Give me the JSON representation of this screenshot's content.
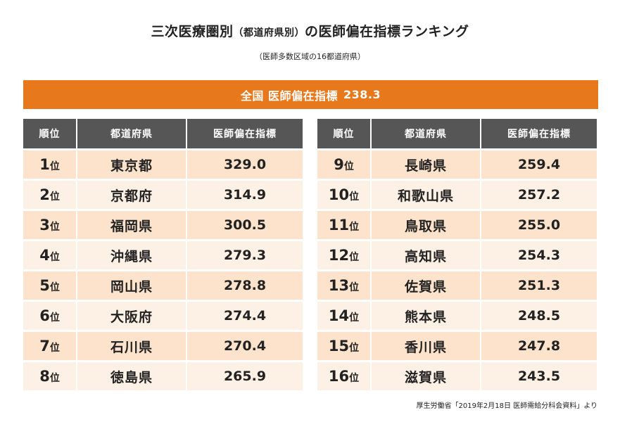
{
  "title": {
    "main_prefix": "三次医療圏別",
    "main_small": "（都道府県別）",
    "main_suffix": "の医師偏在指標ランキング",
    "subtitle": "（医師多数区域の16都道府県）"
  },
  "banner": {
    "label": "全国 医師偏在指標",
    "value": "238.3"
  },
  "table": {
    "headers": [
      "順位",
      "都道府県",
      "医師偏在指標"
    ],
    "rank_suffix": "位",
    "left": [
      {
        "rank": "1",
        "prefecture": "東京都",
        "value": "329.0"
      },
      {
        "rank": "2",
        "prefecture": "京都府",
        "value": "314.9"
      },
      {
        "rank": "3",
        "prefecture": "福岡県",
        "value": "300.5"
      },
      {
        "rank": "4",
        "prefecture": "沖縄県",
        "value": "279.3"
      },
      {
        "rank": "5",
        "prefecture": "岡山県",
        "value": "278.8"
      },
      {
        "rank": "6",
        "prefecture": "大阪府",
        "value": "274.4"
      },
      {
        "rank": "7",
        "prefecture": "石川県",
        "value": "270.4"
      },
      {
        "rank": "8",
        "prefecture": "徳島県",
        "value": "265.9"
      }
    ],
    "right": [
      {
        "rank": "9",
        "prefecture": "長崎県",
        "value": "259.4"
      },
      {
        "rank": "10",
        "prefecture": "和歌山県",
        "value": "257.2"
      },
      {
        "rank": "11",
        "prefecture": "鳥取県",
        "value": "255.0"
      },
      {
        "rank": "12",
        "prefecture": "高知県",
        "value": "254.3"
      },
      {
        "rank": "13",
        "prefecture": "佐賀県",
        "value": "251.3"
      },
      {
        "rank": "14",
        "prefecture": "熊本県",
        "value": "248.5"
      },
      {
        "rank": "15",
        "prefecture": "香川県",
        "value": "247.8"
      },
      {
        "rank": "16",
        "prefecture": "滋賀県",
        "value": "243.5"
      }
    ]
  },
  "source": "厚生労働省「2019年2月18日 医師需給分科会資料」より",
  "colors": {
    "accent_orange": "#e8781c",
    "header_gray": "#565656",
    "row_dark": "#fde3cb",
    "row_light": "#fdf0e4"
  }
}
